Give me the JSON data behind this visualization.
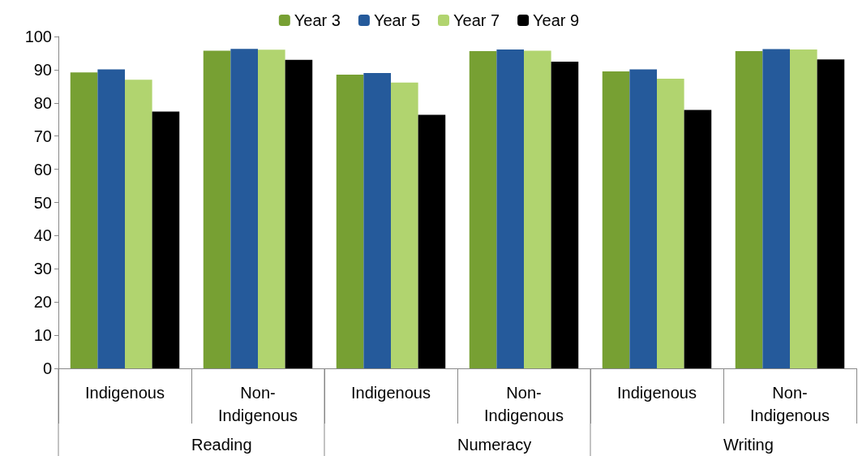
{
  "chart_data": {
    "type": "bar",
    "categories": [
      "Indigenous",
      "Non-Indigenous",
      "Indigenous",
      "Non-Indigenous",
      "Indigenous",
      "Non-Indigenous"
    ],
    "series": [
      {
        "name": "Year 3",
        "color": "#77a033",
        "values": [
          89.2,
          95.7,
          88.5,
          95.6,
          89.5,
          95.6
        ]
      },
      {
        "name": "Year 5",
        "color": "#255a9b",
        "values": [
          90.1,
          96.3,
          89,
          96.1,
          90.1,
          96.2
        ]
      },
      {
        "name": "Year 7",
        "color": "#b1d46f",
        "values": [
          87,
          96,
          86.1,
          95.7,
          87.3,
          96.1
        ]
      },
      {
        "name": "Year 9",
        "color": "#000000",
        "values": [
          77.4,
          93,
          76.4,
          92.4,
          77.9,
          93.1
        ]
      }
    ],
    "annotations": [
      "Reading",
      "Numeracy",
      "Writing"
    ],
    "ylim": [
      0,
      100
    ],
    "yticks": [
      0,
      10,
      20,
      30,
      40,
      50,
      60,
      70,
      80,
      90,
      100
    ],
    "grid": false,
    "legend": "top"
  }
}
